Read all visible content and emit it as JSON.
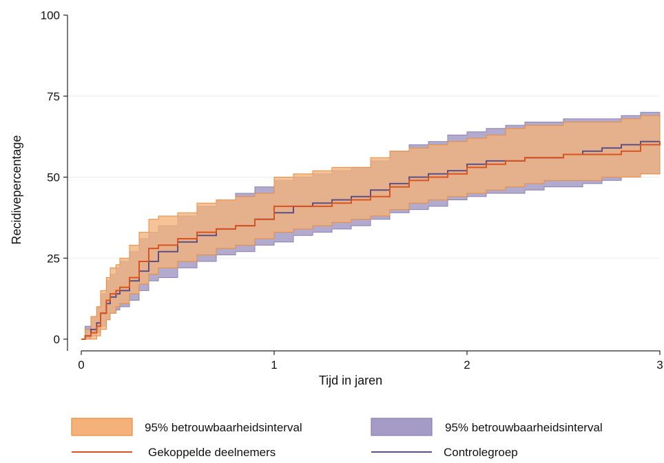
{
  "chart_data": {
    "type": "line",
    "xlabel": "Tijd in jaren",
    "ylabel": "Recidivepercentage",
    "xlim": [
      0,
      3
    ],
    "ylim": [
      0,
      100
    ],
    "x_ticks": [
      "0",
      "1",
      "2",
      "3"
    ],
    "y_ticks": [
      "0",
      "25",
      "50",
      "75",
      "100"
    ],
    "grid": "horizontal",
    "legend_position": "bottom",
    "colors": {
      "gekoppelde_line": "#d9531e",
      "gekoppelde_band": "#f4b27a",
      "controle_line": "#5b4f86",
      "controle_band": "#a49cc6"
    },
    "series": [
      {
        "name": "Gekoppelde deelnemers",
        "ci_name": "95% betrouwbaarheidsinterval",
        "x": [
          0,
          0.02,
          0.05,
          0.08,
          0.1,
          0.13,
          0.15,
          0.18,
          0.2,
          0.25,
          0.3,
          0.35,
          0.4,
          0.5,
          0.6,
          0.7,
          0.8,
          0.9,
          1.0,
          1.1,
          1.2,
          1.3,
          1.4,
          1.5,
          1.6,
          1.7,
          1.8,
          1.9,
          2.0,
          2.1,
          2.2,
          2.3,
          2.4,
          2.5,
          2.6,
          2.7,
          2.8,
          2.9,
          3.0
        ],
        "y": [
          0,
          1,
          2,
          4,
          8,
          12,
          14,
          15,
          16,
          19,
          24,
          28,
          29,
          31,
          33,
          34,
          35,
          37,
          41,
          41,
          41,
          42,
          43,
          44,
          47,
          49,
          50,
          51,
          53,
          54,
          55,
          56,
          56,
          57,
          57,
          57,
          58,
          60,
          61
        ],
        "lower": [
          0,
          0,
          0,
          1,
          3,
          6,
          8,
          10,
          11,
          14,
          17,
          20,
          22,
          24,
          26,
          28,
          29,
          31,
          33,
          34,
          35,
          36,
          37,
          38,
          40,
          42,
          43,
          44,
          45,
          46,
          47,
          48,
          49,
          49,
          49,
          50,
          50,
          51,
          52
        ],
        "upper": [
          0,
          3,
          7,
          10,
          15,
          19,
          22,
          23,
          25,
          29,
          33,
          37,
          38,
          39,
          42,
          43,
          44,
          45,
          50,
          51,
          52,
          53,
          53,
          56,
          58,
          59,
          60,
          61,
          62,
          63,
          65,
          66,
          66,
          67,
          67,
          67,
          68,
          69,
          70
        ]
      },
      {
        "name": "Controlegroep",
        "ci_name": "95% betrouwbaarheidsinterval",
        "x": [
          0,
          0.02,
          0.05,
          0.08,
          0.1,
          0.13,
          0.15,
          0.18,
          0.2,
          0.25,
          0.3,
          0.35,
          0.4,
          0.5,
          0.6,
          0.7,
          0.8,
          0.9,
          1.0,
          1.1,
          1.2,
          1.3,
          1.4,
          1.5,
          1.6,
          1.7,
          1.8,
          1.9,
          2.0,
          2.1,
          2.2,
          2.3,
          2.4,
          2.5,
          2.6,
          2.7,
          2.8,
          2.9,
          3.0
        ],
        "y": [
          0,
          1,
          3,
          5,
          8,
          11,
          13,
          14,
          15,
          18,
          21,
          24,
          27,
          30,
          32,
          34,
          35,
          37,
          39,
          41,
          42,
          43,
          44,
          46,
          48,
          50,
          51,
          52,
          54,
          55,
          55,
          56,
          56,
          57,
          58,
          59,
          60,
          61,
          61
        ],
        "lower": [
          0,
          0,
          1,
          2,
          4,
          6,
          8,
          9,
          10,
          12,
          15,
          18,
          19,
          22,
          24,
          26,
          27,
          29,
          30,
          32,
          33,
          34,
          35,
          37,
          39,
          40,
          41,
          43,
          44,
          45,
          45,
          46,
          47,
          47,
          48,
          49,
          50,
          51,
          52
        ],
        "upper": [
          0,
          4,
          7,
          10,
          14,
          18,
          20,
          22,
          24,
          27,
          31,
          33,
          35,
          38,
          41,
          43,
          45,
          47,
          49,
          50,
          51,
          52,
          53,
          55,
          58,
          60,
          61,
          63,
          64,
          65,
          66,
          67,
          67,
          68,
          68,
          68,
          69,
          70,
          70
        ]
      }
    ]
  }
}
